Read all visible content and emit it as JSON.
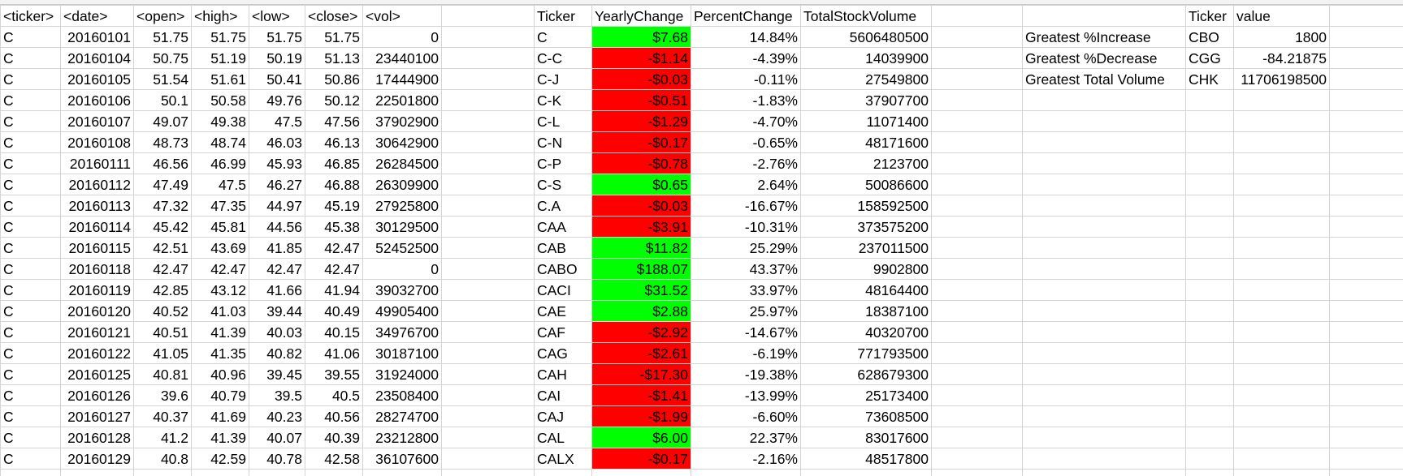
{
  "colors": {
    "positive_fill": "#00ff00",
    "negative_fill": "#ff0000",
    "gridline": "#d4d4d4"
  },
  "stock_data": {
    "headers": [
      "<ticker>",
      "<date>",
      "<open>",
      "<high>",
      "<low>",
      "<close>",
      "<vol>"
    ],
    "rows": [
      [
        "C",
        "20160101",
        "51.75",
        "51.75",
        "51.75",
        "51.75",
        "0"
      ],
      [
        "C",
        "20160104",
        "50.75",
        "51.19",
        "50.19",
        "51.13",
        "23440100"
      ],
      [
        "C",
        "20160105",
        "51.54",
        "51.61",
        "50.41",
        "50.86",
        "17444900"
      ],
      [
        "C",
        "20160106",
        "50.1",
        "50.58",
        "49.76",
        "50.12",
        "22501800"
      ],
      [
        "C",
        "20160107",
        "49.07",
        "49.38",
        "47.5",
        "47.56",
        "37902900"
      ],
      [
        "C",
        "20160108",
        "48.73",
        "48.74",
        "46.03",
        "46.13",
        "30642900"
      ],
      [
        "C",
        "20160111",
        "46.56",
        "46.99",
        "45.93",
        "46.85",
        "26284500"
      ],
      [
        "C",
        "20160112",
        "47.49",
        "47.5",
        "46.27",
        "46.88",
        "26309900"
      ],
      [
        "C",
        "20160113",
        "47.32",
        "47.35",
        "44.97",
        "45.19",
        "27925800"
      ],
      [
        "C",
        "20160114",
        "45.42",
        "45.81",
        "44.56",
        "45.38",
        "30129500"
      ],
      [
        "C",
        "20160115",
        "42.51",
        "43.69",
        "41.85",
        "42.47",
        "52452500"
      ],
      [
        "C",
        "20160118",
        "42.47",
        "42.47",
        "42.47",
        "42.47",
        "0"
      ],
      [
        "C",
        "20160119",
        "42.85",
        "43.12",
        "41.66",
        "41.94",
        "39032700"
      ],
      [
        "C",
        "20160120",
        "40.52",
        "41.03",
        "39.44",
        "40.49",
        "49905400"
      ],
      [
        "C",
        "20160121",
        "40.51",
        "41.39",
        "40.03",
        "40.15",
        "34976700"
      ],
      [
        "C",
        "20160122",
        "41.05",
        "41.35",
        "40.82",
        "41.06",
        "30187100"
      ],
      [
        "C",
        "20160125",
        "40.81",
        "40.96",
        "39.45",
        "39.55",
        "31924000"
      ],
      [
        "C",
        "20160126",
        "39.6",
        "40.79",
        "39.5",
        "40.5",
        "23508400"
      ],
      [
        "C",
        "20160127",
        "40.37",
        "41.69",
        "40.23",
        "40.56",
        "28274700"
      ],
      [
        "C",
        "20160128",
        "41.2",
        "41.39",
        "40.07",
        "40.39",
        "23212800"
      ],
      [
        "C",
        "20160129",
        "40.8",
        "42.59",
        "40.78",
        "42.58",
        "36107600"
      ]
    ]
  },
  "summary": {
    "headers": [
      "Ticker",
      "YearlyChange",
      "PercentChange",
      "TotalStockVolume"
    ],
    "rows": [
      [
        "C",
        "$7.68",
        "14.84%",
        "5606480500"
      ],
      [
        "C-C",
        "-$1.14",
        "-4.39%",
        "14039900"
      ],
      [
        "C-J",
        "-$0.03",
        "-0.11%",
        "27549800"
      ],
      [
        "C-K",
        "-$0.51",
        "-1.83%",
        "37907700"
      ],
      [
        "C-L",
        "-$1.29",
        "-4.70%",
        "11071400"
      ],
      [
        "C-N",
        "-$0.17",
        "-0.65%",
        "48171600"
      ],
      [
        "C-P",
        "-$0.78",
        "-2.76%",
        "2123700"
      ],
      [
        "C-S",
        "$0.65",
        "2.64%",
        "50086600"
      ],
      [
        "C.A",
        "-$0.03",
        "-16.67%",
        "158592500"
      ],
      [
        "CAA",
        "-$3.91",
        "-10.31%",
        "373575200"
      ],
      [
        "CAB",
        "$11.82",
        "25.29%",
        "237011500"
      ],
      [
        "CABO",
        "$188.07",
        "43.37%",
        "9902800"
      ],
      [
        "CACI",
        "$31.52",
        "33.97%",
        "48164400"
      ],
      [
        "CAE",
        "$2.88",
        "25.97%",
        "18387100"
      ],
      [
        "CAF",
        "-$2.92",
        "-14.67%",
        "40320700"
      ],
      [
        "CAG",
        "-$2.61",
        "-6.19%",
        "771793500"
      ],
      [
        "CAH",
        "-$17.30",
        "-19.38%",
        "628679300"
      ],
      [
        "CAI",
        "-$1.41",
        "-13.99%",
        "25173400"
      ],
      [
        "CAJ",
        "-$1.99",
        "-6.60%",
        "73608500"
      ],
      [
        "CAL",
        "$6.00",
        "22.37%",
        "83017600"
      ],
      [
        "CALX",
        "-$0.17",
        "-2.16%",
        "48517800"
      ]
    ]
  },
  "greatest": {
    "headers": [
      "Ticker",
      "value"
    ],
    "rows": [
      [
        "Greatest %Increase",
        "CBO",
        "1800"
      ],
      [
        "Greatest %Decrease",
        "CGG",
        "-84.21875"
      ],
      [
        "Greatest Total Volume",
        "CHK",
        "11706198500"
      ]
    ]
  }
}
